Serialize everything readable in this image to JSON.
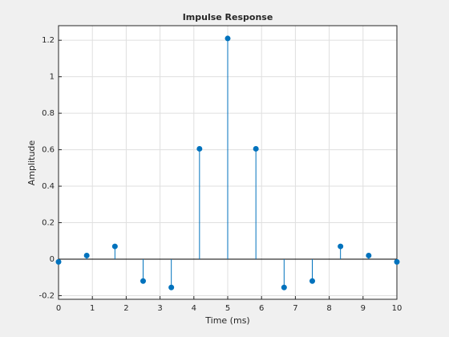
{
  "chart_data": {
    "type": "stem",
    "title": "Impulse Response",
    "x_label": "Time (ms)",
    "y_label": "Amplitude",
    "x": [
      0,
      0.8333,
      1.6667,
      2.5,
      3.3333,
      4.1667,
      5,
      5.8333,
      6.6667,
      7.5,
      8.3333,
      9.1667,
      10
    ],
    "series": [
      {
        "color": "#0072bd",
        "values": [
          -0.015,
          0.02,
          0.07,
          -0.12,
          -0.155,
          0.605,
          1.21,
          0.605,
          -0.155,
          -0.12,
          0.07,
          0.02,
          -0.015
        ]
      }
    ],
    "xlim": [
      0,
      10
    ],
    "ylim": [
      -0.22,
      1.28
    ],
    "xticks": [
      0,
      1,
      2,
      3,
      4,
      5,
      6,
      7,
      8,
      9,
      10
    ],
    "yticks": [
      -0.2,
      0,
      0.2,
      0.4,
      0.6,
      0.8,
      1,
      1.2
    ],
    "grid": true
  }
}
